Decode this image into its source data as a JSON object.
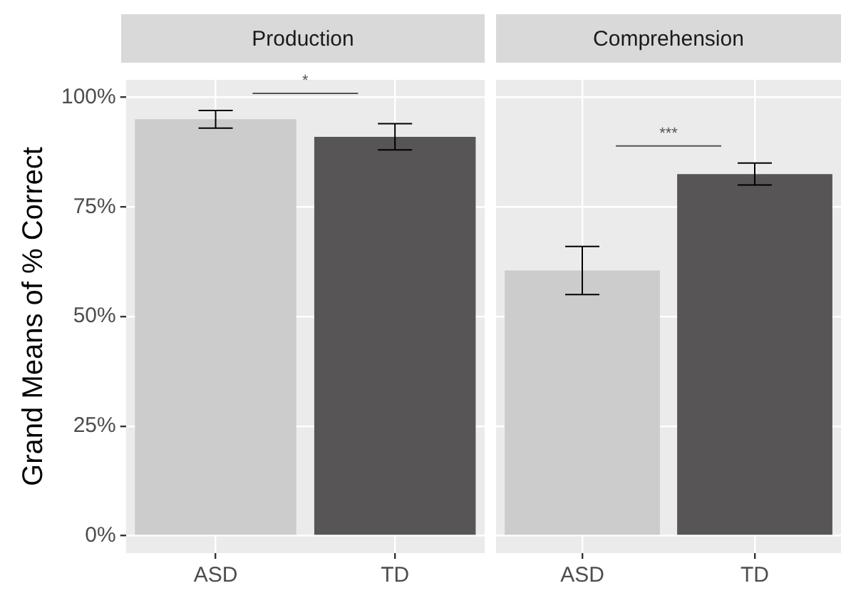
{
  "chart_data": [
    {
      "type": "bar",
      "title": "Production",
      "ylabel": "Grand Means of % Correct",
      "categories": [
        "ASD",
        "TD"
      ],
      "values": [
        95,
        91
      ],
      "colors": [
        "#cccccc",
        "#575555"
      ],
      "errors": [
        [
          93,
          97
        ],
        [
          88,
          94
        ]
      ],
      "ylim": [
        -4,
        104
      ],
      "yticks": [
        {
          "value": 0,
          "label": "0%"
        },
        {
          "value": 25,
          "label": "25%"
        },
        {
          "value": 50,
          "label": "50%"
        },
        {
          "value": 75,
          "label": "75%"
        },
        {
          "value": 100,
          "label": "100%"
        }
      ],
      "grid": true,
      "annotations": [
        "*"
      ]
    },
    {
      "type": "bar",
      "title": "Comprehension",
      "categories": [
        "ASD",
        "TD"
      ],
      "values": [
        60.5,
        82.5
      ],
      "colors": [
        "#cccccc",
        "#575555"
      ],
      "errors": [
        [
          55,
          66
        ],
        [
          80,
          85
        ]
      ],
      "ylim": [
        -4,
        104
      ],
      "yticks": [
        0,
        25,
        50,
        75,
        100
      ],
      "grid": true,
      "tick_labels": "x",
      "annotations": [
        "***"
      ]
    }
  ]
}
